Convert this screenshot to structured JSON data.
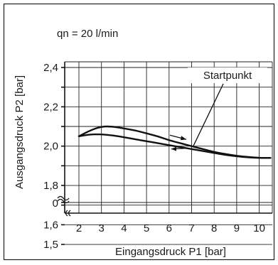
{
  "chart_data": {
    "type": "line",
    "title": "qn = 20 l/min",
    "xlabel": "Eingangsdruck P1 [bar]",
    "ylabel": "Ausgangsdruck P2 [bar]",
    "x_ticks": [
      "2",
      "3",
      "4",
      "5",
      "6",
      "7",
      "8",
      "9",
      "10"
    ],
    "y_ticks": [
      "2,4",
      "2,2",
      "2,0",
      "1,8",
      "1,6",
      "1,5",
      "0"
    ],
    "xlim": [
      1.35,
      10.6
    ],
    "ylim": [
      1.5,
      2.4
    ],
    "annotation": "Startpunkt",
    "grid": true,
    "axis_breaks": true,
    "series": [
      {
        "x": [
          2.0,
          2.5,
          3.0,
          3.5,
          4.0,
          4.5,
          5.0,
          5.5,
          6.0,
          6.5,
          7.0,
          7.5,
          8.0,
          8.5,
          9.0,
          9.5,
          10.0,
          10.5
        ],
        "y": [
          2.05,
          2.08,
          2.1,
          2.1,
          2.09,
          2.08,
          2.065,
          2.05,
          2.03,
          2.015,
          2.0,
          1.985,
          1.97,
          1.96,
          1.95,
          1.945,
          1.94,
          1.94
        ]
      },
      {
        "x": [
          2.0,
          2.5,
          3.0,
          3.5,
          4.0,
          4.5,
          5.0,
          5.5,
          6.0,
          6.5,
          7.0,
          7.5,
          8.0,
          8.5,
          9.0,
          9.5,
          10.0,
          10.5
        ],
        "y": [
          2.05,
          2.06,
          2.06,
          2.055,
          2.045,
          2.035,
          2.025,
          2.015,
          2.005,
          1.995,
          1.985,
          1.975,
          1.965,
          1.955,
          1.948,
          1.943,
          1.94,
          1.94
        ]
      }
    ]
  }
}
